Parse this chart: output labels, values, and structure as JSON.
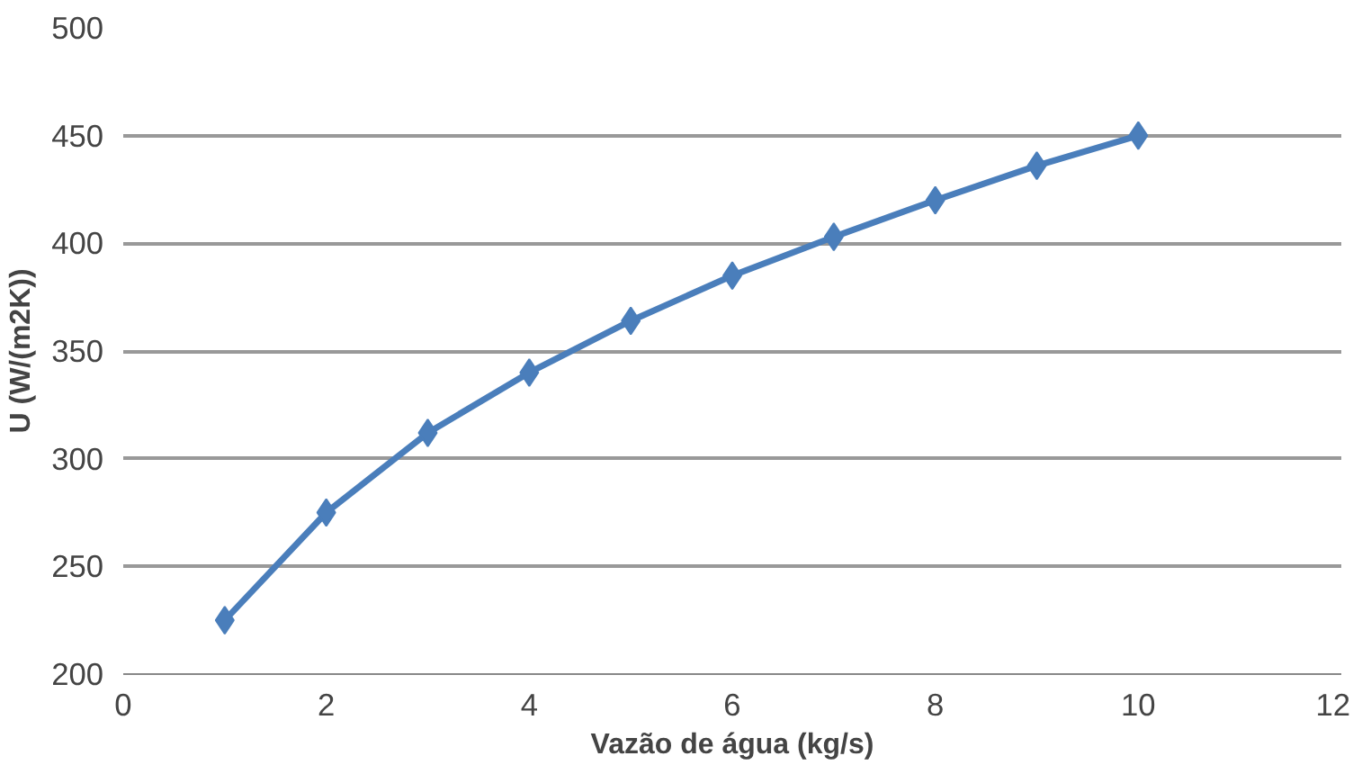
{
  "chart_data": {
    "type": "line",
    "xlabel": "Vazão de água (kg/s)",
    "ylabel": "U (W/(m2K))",
    "x": [
      1,
      2,
      3,
      4,
      5,
      6,
      7,
      8,
      9,
      10
    ],
    "series": [
      {
        "color": "#4a7ebb",
        "values": [
          225,
          275,
          312,
          340,
          364,
          385,
          403,
          420,
          436,
          450
        ]
      }
    ],
    "xlim": [
      0,
      12
    ],
    "xticks": [
      0,
      2,
      4,
      6,
      8,
      10,
      12
    ],
    "ylim": [
      200,
      500
    ],
    "yticks": [
      200,
      250,
      300,
      350,
      400,
      450,
      500
    ],
    "grid": "y",
    "marker": "diamond",
    "line_style": "solid"
  }
}
